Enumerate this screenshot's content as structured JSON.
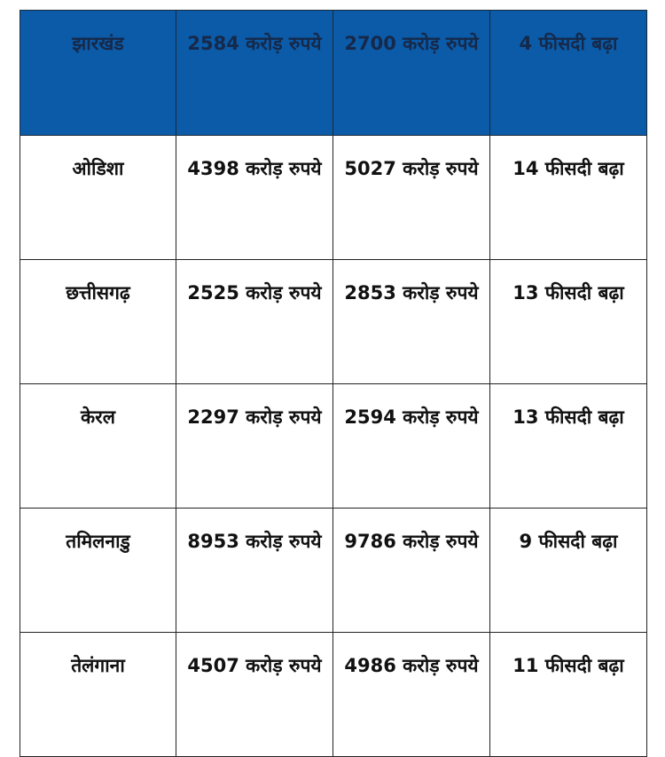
{
  "table": {
    "header_color": "#0b5ba8",
    "rows": [
      [
        "झारखंड",
        "2584 करोड़ रुपये",
        "2700 करोड़ रुपये",
        "4 फीसदी बढ़ा"
      ],
      [
        "ओडिशा",
        "4398 करोड़ रुपये",
        "5027 करोड़ रुपये",
        "14 फीसदी बढ़ा"
      ],
      [
        "छत्तीसगढ़",
        "2525 करोड़ रुपये",
        "2853 करोड़ रुपये",
        "13 फीसदी बढ़ा"
      ],
      [
        "केरल",
        "2297 करोड़ रुपये",
        "2594 करोड़ रुपये",
        "13 फीसदी बढ़ा"
      ],
      [
        "तमिलनाडु",
        "8953 करोड़ रुपये",
        "9786 करोड़ रुपये",
        "9 फीसदी बढ़ा"
      ],
      [
        "तेलंगाना",
        "4507 करोड़ रुपये",
        "4986 करोड़ रुपये",
        "11 फीसदी बढ़ा"
      ]
    ]
  }
}
